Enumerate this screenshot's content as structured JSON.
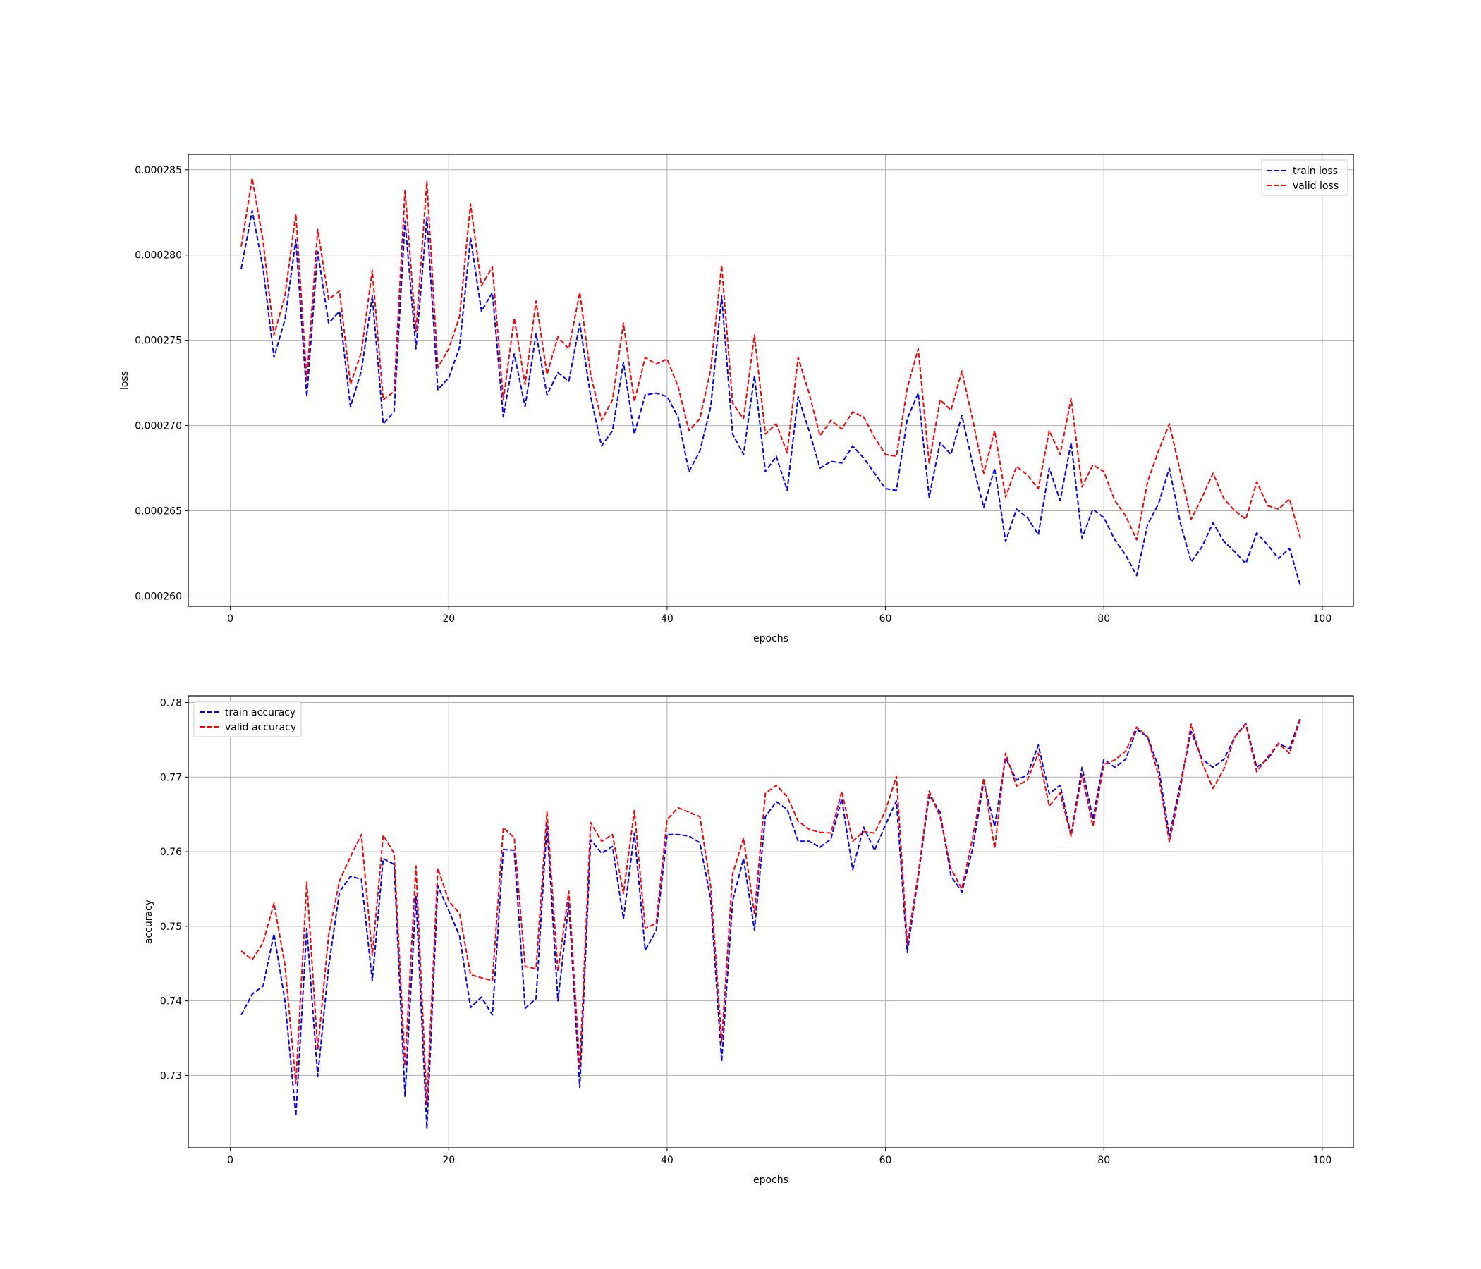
{
  "chart_data": [
    {
      "type": "line",
      "xlabel": "epochs",
      "ylabel": "loss",
      "xlim": [
        -3.85,
        102.85
      ],
      "ylim": [
        0.0002594,
        0.0002859
      ],
      "xticks": [
        0,
        20,
        40,
        60,
        80,
        100
      ],
      "yticks": [
        0.00026,
        0.000265,
        0.00027,
        0.000275,
        0.00028,
        0.000285
      ],
      "ytick_labels": [
        "0.000260",
        "0.000265",
        "0.000270",
        "0.000275",
        "0.000280",
        "0.000285"
      ],
      "grid": true,
      "legend_position": "upper-right",
      "x": [
        1,
        2,
        3,
        4,
        5,
        6,
        7,
        8,
        9,
        10,
        11,
        12,
        13,
        14,
        15,
        16,
        17,
        18,
        19,
        20,
        21,
        22,
        23,
        24,
        25,
        26,
        27,
        28,
        29,
        30,
        31,
        32,
        33,
        34,
        35,
        36,
        37,
        38,
        39,
        40,
        41,
        42,
        43,
        44,
        45,
        46,
        47,
        48,
        49,
        50,
        51,
        52,
        53,
        54,
        55,
        56,
        57,
        58,
        59,
        60,
        61,
        62,
        63,
        64,
        65,
        66,
        67,
        68,
        69,
        70,
        71,
        72,
        73,
        74,
        75,
        76,
        77,
        78,
        79,
        80,
        81,
        82,
        83,
        84,
        85,
        86,
        87,
        88,
        89,
        90,
        91,
        92,
        93,
        94,
        95,
        96,
        97,
        98
      ],
      "series": [
        {
          "name": "train loss",
          "color": "#0000ff",
          "values": [
            0.0002792,
            0.0002826,
            0.0002792,
            0.000274,
            0.0002762,
            0.0002809,
            0.0002717,
            0.0002802,
            0.000276,
            0.0002767,
            0.0002711,
            0.0002732,
            0.0002776,
            0.0002701,
            0.0002708,
            0.000282,
            0.0002745,
            0.0002822,
            0.0002721,
            0.0002728,
            0.0002746,
            0.000281,
            0.0002767,
            0.0002778,
            0.0002705,
            0.0002742,
            0.0002711,
            0.0002754,
            0.0002718,
            0.0002731,
            0.0002726,
            0.000276,
            0.0002717,
            0.0002688,
            0.0002697,
            0.0002737,
            0.0002695,
            0.0002718,
            0.0002719,
            0.0002717,
            0.0002705,
            0.0002673,
            0.0002685,
            0.0002711,
            0.0002776,
            0.0002695,
            0.0002683,
            0.0002729,
            0.0002673,
            0.0002682,
            0.0002662,
            0.0002717,
            0.0002697,
            0.0002675,
            0.0002679,
            0.0002678,
            0.0002688,
            0.0002681,
            0.0002672,
            0.0002663,
            0.0002662,
            0.0002704,
            0.0002719,
            0.0002658,
            0.000269,
            0.0002683,
            0.0002706,
            0.0002677,
            0.0002652,
            0.0002675,
            0.0002632,
            0.0002651,
            0.0002646,
            0.0002636,
            0.0002675,
            0.0002656,
            0.000269,
            0.0002634,
            0.0002651,
            0.0002646,
            0.0002633,
            0.0002624,
            0.0002612,
            0.0002642,
            0.0002654,
            0.0002675,
            0.0002643,
            0.000262,
            0.0002629,
            0.0002643,
            0.0002632,
            0.0002626,
            0.0002619,
            0.0002637,
            0.000263,
            0.0002622,
            0.0002628,
            0.0002606
          ]
        },
        {
          "name": "valid loss",
          "color": "#ff0000",
          "values": [
            0.0002805,
            0.0002845,
            0.0002808,
            0.0002753,
            0.0002776,
            0.0002824,
            0.0002727,
            0.0002815,
            0.0002774,
            0.0002779,
            0.0002724,
            0.0002743,
            0.0002791,
            0.0002715,
            0.000272,
            0.0002838,
            0.0002755,
            0.0002843,
            0.0002734,
            0.0002745,
            0.0002764,
            0.000283,
            0.0002782,
            0.0002793,
            0.0002715,
            0.0002763,
            0.0002724,
            0.0002773,
            0.000273,
            0.0002752,
            0.0002745,
            0.0002778,
            0.000273,
            0.0002703,
            0.0002715,
            0.000276,
            0.0002714,
            0.000274,
            0.0002736,
            0.0002739,
            0.0002723,
            0.0002697,
            0.0002704,
            0.0002733,
            0.0002794,
            0.0002713,
            0.0002704,
            0.0002753,
            0.0002695,
            0.0002701,
            0.0002684,
            0.000274,
            0.0002719,
            0.0002694,
            0.0002703,
            0.0002698,
            0.0002708,
            0.0002705,
            0.0002693,
            0.0002683,
            0.0002682,
            0.0002722,
            0.0002745,
            0.0002678,
            0.0002715,
            0.0002709,
            0.0002732,
            0.0002703,
            0.0002672,
            0.0002697,
            0.0002658,
            0.0002676,
            0.0002671,
            0.0002663,
            0.0002697,
            0.0002683,
            0.0002716,
            0.0002664,
            0.0002677,
            0.0002673,
            0.0002656,
            0.0002647,
            0.0002633,
            0.0002667,
            0.0002685,
            0.0002701,
            0.0002673,
            0.0002645,
            0.0002658,
            0.0002672,
            0.0002657,
            0.000265,
            0.0002645,
            0.0002667,
            0.0002653,
            0.0002651,
            0.0002657,
            0.0002634
          ]
        }
      ]
    },
    {
      "type": "line",
      "xlabel": "epochs",
      "ylabel": "accuracy",
      "xlim": [
        -3.85,
        102.85
      ],
      "ylim": [
        0.7203,
        0.7809
      ],
      "xticks": [
        0,
        20,
        40,
        60,
        80,
        100
      ],
      "yticks": [
        0.73,
        0.74,
        0.75,
        0.76,
        0.77,
        0.78
      ],
      "ytick_labels": [
        "0.73",
        "0.74",
        "0.75",
        "0.76",
        "0.77",
        "0.78"
      ],
      "grid": true,
      "legend_position": "upper-left",
      "x": [
        1,
        2,
        3,
        4,
        5,
        6,
        7,
        8,
        9,
        10,
        11,
        12,
        13,
        14,
        15,
        16,
        17,
        18,
        19,
        20,
        21,
        22,
        23,
        24,
        25,
        26,
        27,
        28,
        29,
        30,
        31,
        32,
        33,
        34,
        35,
        36,
        37,
        38,
        39,
        40,
        41,
        42,
        43,
        44,
        45,
        46,
        47,
        48,
        49,
        50,
        51,
        52,
        53,
        54,
        55,
        56,
        57,
        58,
        59,
        60,
        61,
        62,
        63,
        64,
        65,
        66,
        67,
        68,
        69,
        70,
        71,
        72,
        73,
        74,
        75,
        76,
        77,
        78,
        79,
        80,
        81,
        82,
        83,
        84,
        85,
        86,
        87,
        88,
        89,
        90,
        91,
        92,
        93,
        94,
        95,
        96,
        97,
        98
      ],
      "series": [
        {
          "name": "train accuracy",
          "color": "#0000ff",
          "values": [
            0.7381,
            0.7409,
            0.742,
            0.749,
            0.74,
            0.7246,
            0.7497,
            0.7299,
            0.7446,
            0.7546,
            0.7567,
            0.7563,
            0.7427,
            0.7591,
            0.7583,
            0.7272,
            0.754,
            0.7229,
            0.7554,
            0.7521,
            0.7487,
            0.7391,
            0.7405,
            0.7381,
            0.7603,
            0.7602,
            0.739,
            0.7403,
            0.7637,
            0.74,
            0.7531,
            0.7284,
            0.7616,
            0.7598,
            0.7607,
            0.751,
            0.7625,
            0.7468,
            0.7494,
            0.7623,
            0.7623,
            0.7621,
            0.7612,
            0.7536,
            0.7319,
            0.7534,
            0.7591,
            0.7495,
            0.7647,
            0.7667,
            0.7657,
            0.7614,
            0.7614,
            0.7606,
            0.7617,
            0.7671,
            0.7576,
            0.7633,
            0.7602,
            0.7636,
            0.7668,
            0.7465,
            0.7566,
            0.7676,
            0.7653,
            0.7567,
            0.7546,
            0.7605,
            0.7694,
            0.7634,
            0.7726,
            0.7696,
            0.7703,
            0.7743,
            0.7678,
            0.7689,
            0.7622,
            0.7713,
            0.7644,
            0.7724,
            0.7713,
            0.7724,
            0.7764,
            0.7754,
            0.7714,
            0.7621,
            0.7691,
            0.7761,
            0.7724,
            0.7713,
            0.7724,
            0.7754,
            0.7772,
            0.7713,
            0.7724,
            0.7745,
            0.7738,
            0.778
          ]
        },
        {
          "name": "valid accuracy",
          "color": "#ff0000",
          "values": [
            0.7467,
            0.7455,
            0.7478,
            0.7531,
            0.7448,
            0.7289,
            0.7559,
            0.7334,
            0.7488,
            0.7561,
            0.7593,
            0.7623,
            0.7461,
            0.7622,
            0.7598,
            0.7313,
            0.7581,
            0.7261,
            0.7578,
            0.7534,
            0.7517,
            0.7435,
            0.7431,
            0.7427,
            0.7632,
            0.7619,
            0.7446,
            0.7443,
            0.7653,
            0.7439,
            0.7547,
            0.731,
            0.7639,
            0.7614,
            0.7623,
            0.7544,
            0.7655,
            0.7497,
            0.7504,
            0.7643,
            0.7659,
            0.7653,
            0.7647,
            0.7553,
            0.7345,
            0.757,
            0.7618,
            0.7517,
            0.7678,
            0.7689,
            0.7674,
            0.7641,
            0.763,
            0.7626,
            0.7625,
            0.7681,
            0.7614,
            0.7627,
            0.7625,
            0.7655,
            0.7701,
            0.7476,
            0.757,
            0.7681,
            0.7647,
            0.7577,
            0.755,
            0.762,
            0.7698,
            0.7604,
            0.7732,
            0.7688,
            0.7696,
            0.7732,
            0.7661,
            0.7679,
            0.7621,
            0.7703,
            0.7634,
            0.7717,
            0.7723,
            0.7735,
            0.7767,
            0.7754,
            0.7703,
            0.7613,
            0.7684,
            0.7771,
            0.7719,
            0.7685,
            0.7711,
            0.7754,
            0.7771,
            0.7707,
            0.7727,
            0.7745,
            0.7732,
            0.7778
          ]
        }
      ]
    }
  ]
}
